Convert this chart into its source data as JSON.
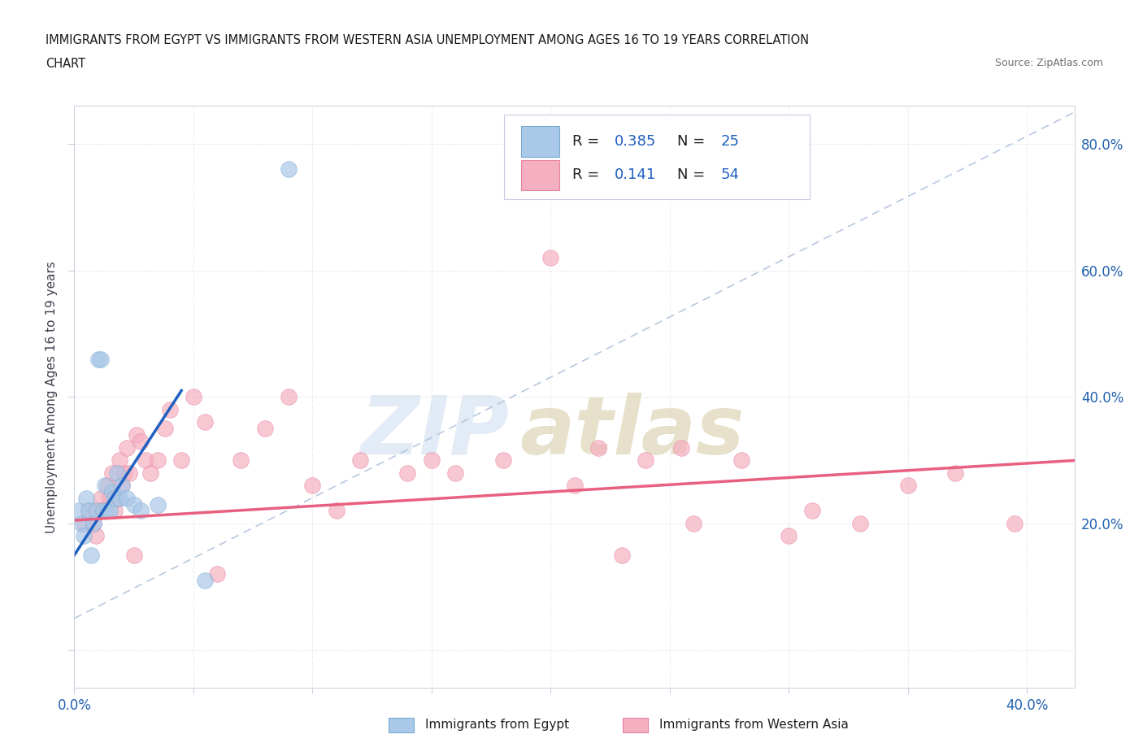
{
  "title_line1": "IMMIGRANTS FROM EGYPT VS IMMIGRANTS FROM WESTERN ASIA UNEMPLOYMENT AMONG AGES 16 TO 19 YEARS CORRELATION",
  "title_line2": "CHART",
  "source_text": "Source: ZipAtlas.com",
  "ylabel": "Unemployment Among Ages 16 to 19 years",
  "xlim": [
    0.0,
    0.42
  ],
  "ylim": [
    -0.06,
    0.86
  ],
  "egypt_color": "#aac8e8",
  "egypt_edge_color": "#7aaad0",
  "western_asia_color": "#f4b0c0",
  "western_asia_edge_color": "#e880a0",
  "egypt_trend_color": "#2060c0",
  "western_asia_trend_color": "#e86080",
  "diag_line_color": "#b0c4dc",
  "egypt_R": "0.385",
  "egypt_N": "25",
  "western_asia_R": "0.141",
  "western_asia_N": "54",
  "legend_R_color": "#2060c0",
  "legend_N_color": "#c04060",
  "watermark_zip_color": "#d0dff0",
  "watermark_atlas_color": "#d4c8a0",
  "egypt_scatter_x": [
    0.002,
    0.003,
    0.004,
    0.005,
    0.006,
    0.007,
    0.008,
    0.009,
    0.01,
    0.011,
    0.012,
    0.013,
    0.014,
    0.015,
    0.016,
    0.017,
    0.018,
    0.019,
    0.02,
    0.022,
    0.025,
    0.028,
    0.035,
    0.055,
    0.09
  ],
  "egypt_scatter_y": [
    0.22,
    0.2,
    0.18,
    0.24,
    0.22,
    0.15,
    0.2,
    0.22,
    0.46,
    0.46,
    0.22,
    0.26,
    0.22,
    0.22,
    0.25,
    0.24,
    0.28,
    0.24,
    0.26,
    0.24,
    0.23,
    0.22,
    0.23,
    0.11,
    0.76
  ],
  "western_asia_scatter_x": [
    0.004,
    0.006,
    0.008,
    0.009,
    0.01,
    0.011,
    0.012,
    0.013,
    0.014,
    0.015,
    0.016,
    0.017,
    0.018,
    0.019,
    0.02,
    0.021,
    0.022,
    0.023,
    0.025,
    0.026,
    0.028,
    0.03,
    0.032,
    0.035,
    0.038,
    0.04,
    0.045,
    0.05,
    0.055,
    0.06,
    0.07,
    0.08,
    0.09,
    0.1,
    0.11,
    0.12,
    0.14,
    0.15,
    0.16,
    0.18,
    0.2,
    0.21,
    0.22,
    0.23,
    0.24,
    0.255,
    0.26,
    0.28,
    0.3,
    0.31,
    0.33,
    0.35,
    0.37,
    0.395
  ],
  "western_asia_scatter_y": [
    0.2,
    0.22,
    0.2,
    0.18,
    0.22,
    0.24,
    0.22,
    0.22,
    0.26,
    0.24,
    0.28,
    0.22,
    0.24,
    0.3,
    0.26,
    0.28,
    0.32,
    0.28,
    0.15,
    0.34,
    0.33,
    0.3,
    0.28,
    0.3,
    0.35,
    0.38,
    0.3,
    0.4,
    0.36,
    0.12,
    0.3,
    0.35,
    0.4,
    0.26,
    0.22,
    0.3,
    0.28,
    0.3,
    0.28,
    0.3,
    0.62,
    0.26,
    0.32,
    0.15,
    0.3,
    0.32,
    0.2,
    0.3,
    0.18,
    0.22,
    0.2,
    0.26,
    0.28,
    0.2
  ]
}
